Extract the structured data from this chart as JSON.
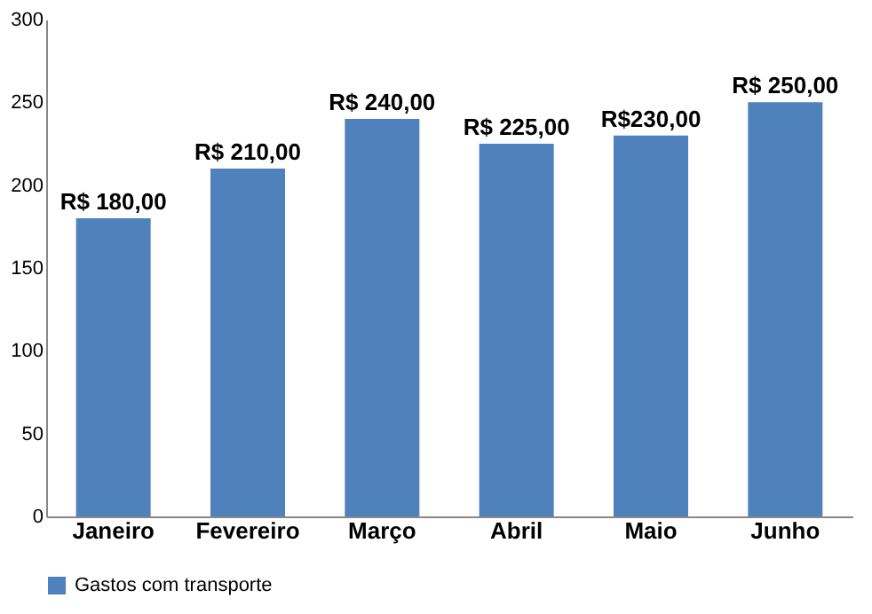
{
  "chart_data": {
    "type": "bar",
    "categories": [
      "Janeiro",
      "Fevereiro",
      "Março",
      "Abril",
      "Maio",
      "Junho"
    ],
    "series": [
      {
        "name": "Gastos com transporte",
        "color": "#4f81bd",
        "values": [
          180,
          210,
          240,
          225,
          230,
          250
        ]
      }
    ],
    "value_labels": [
      "R$ 180,00",
      "R$ 210,00",
      "R$ 240,00",
      "R$ 225,00",
      "R$230,00",
      "R$ 250,00"
    ],
    "ylim": [
      0,
      300
    ],
    "yticks": [
      0,
      50,
      100,
      150,
      200,
      250,
      300
    ],
    "grid": false,
    "legend": "bottom"
  }
}
